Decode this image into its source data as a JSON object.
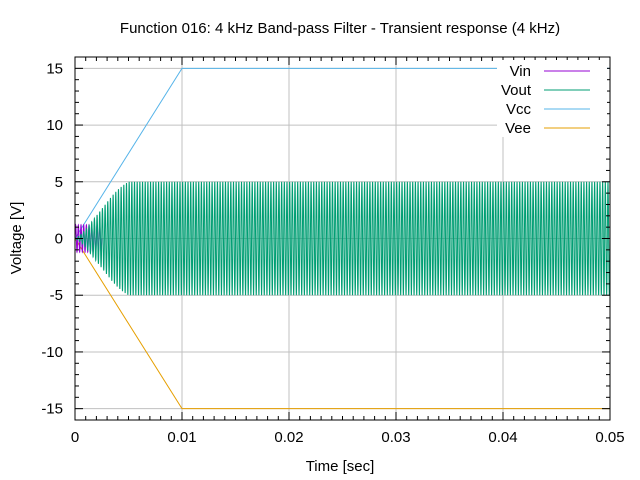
{
  "chart_data": {
    "type": "line",
    "title": "Function 016: 4 kHz Band-pass Filter - Transient response (4 kHz)",
    "xlabel": "Time [sec]",
    "ylabel": "Voltage [V]",
    "xlim": [
      0,
      0.05
    ],
    "ylim": [
      -16,
      16
    ],
    "x_ticks": [
      0,
      0.01,
      0.02,
      0.03,
      0.04,
      0.05
    ],
    "x_tick_labels": [
      "0",
      "0.01",
      "0.02",
      "0.03",
      "0.04",
      "0.05"
    ],
    "y_ticks": [
      15,
      10,
      5,
      0,
      -5,
      -10,
      -15
    ],
    "y_tick_labels": [
      "15",
      "10",
      "5",
      "0",
      "-5",
      "-10",
      "-15"
    ],
    "grid": true,
    "legend_position": "top-right",
    "signal_frequency_hz": 4000,
    "series": [
      {
        "name": "Vin",
        "color": "#9400d3",
        "shape": "sine",
        "amplitude": 1.2,
        "offset": 0,
        "active_until": 0.0025
      },
      {
        "name": "Vout",
        "color": "#009e73",
        "shape": "sine",
        "envelope_points": [
          [
            0,
            0
          ],
          [
            0.0005,
            0.3
          ],
          [
            0.001,
            0.8
          ],
          [
            0.0015,
            1.4
          ],
          [
            0.002,
            2.0
          ],
          [
            0.0025,
            2.6
          ],
          [
            0.003,
            3.2
          ],
          [
            0.0035,
            3.8
          ],
          [
            0.004,
            4.3
          ],
          [
            0.0045,
            4.7
          ],
          [
            0.005,
            5.0
          ],
          [
            0.05,
            5.0
          ]
        ]
      },
      {
        "name": "Vcc",
        "color": "#56b4e9",
        "shape": "piecewise",
        "points": [
          [
            0,
            0
          ],
          [
            0.01,
            15
          ],
          [
            0.05,
            15
          ]
        ]
      },
      {
        "name": "Vee",
        "color": "#e69f00",
        "shape": "piecewise",
        "points": [
          [
            0,
            0
          ],
          [
            0.01,
            -15
          ],
          [
            0.05,
            -15
          ]
        ]
      }
    ]
  }
}
